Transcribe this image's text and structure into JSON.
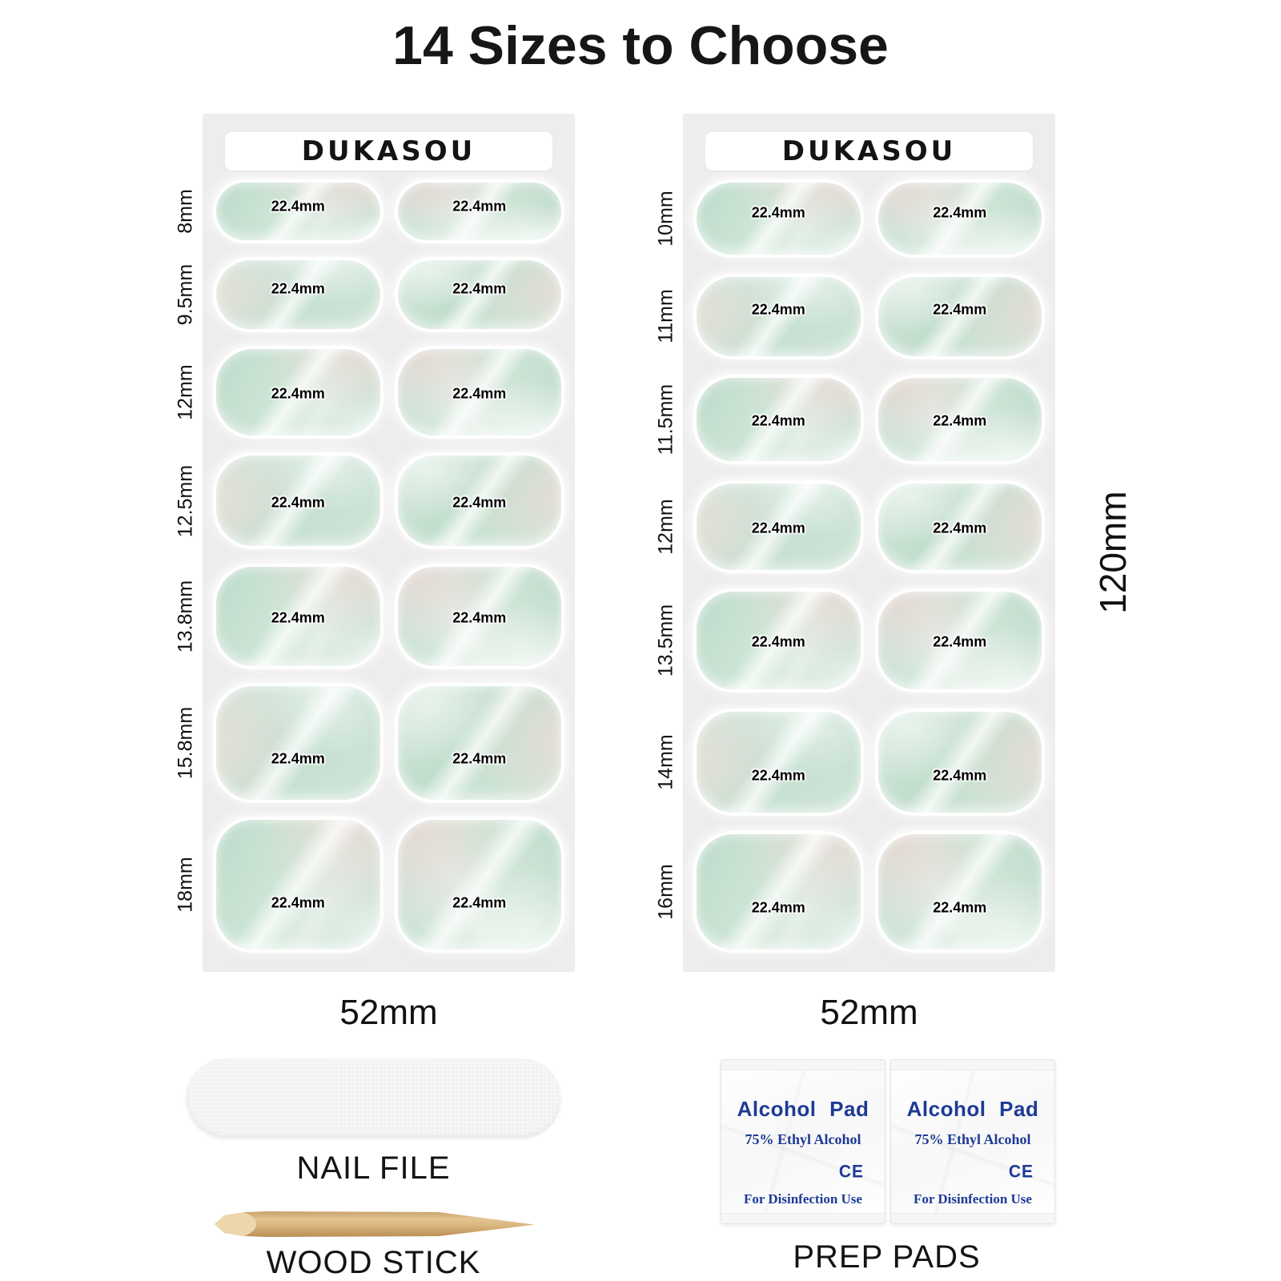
{
  "page": {
    "title": "14 Sizes to Choose"
  },
  "sheets": [
    {
      "side": "left",
      "brand": "DUKASOU",
      "bottom_width_label": "52mm",
      "nail_width_label": "22.4mm",
      "rows": [
        {
          "size": "8mm"
        },
        {
          "size": "9.5mm"
        },
        {
          "size": "12mm"
        },
        {
          "size": "12.5mm"
        },
        {
          "size": "13.8mm"
        },
        {
          "size": "15.8mm"
        },
        {
          "size": "18mm"
        }
      ]
    },
    {
      "side": "right",
      "brand": "DUKASOU",
      "bottom_width_label": "52mm",
      "nail_width_label": "22.4mm",
      "rows": [
        {
          "size": "10mm"
        },
        {
          "size": "11mm"
        },
        {
          "size": "11.5mm"
        },
        {
          "size": "12mm"
        },
        {
          "size": "13.5mm"
        },
        {
          "size": "14mm"
        },
        {
          "size": "16mm"
        }
      ]
    }
  ],
  "sheet_height_label": "120mm",
  "accessories": {
    "nail_file": {
      "label": "NAIL FILE"
    },
    "wood_stick": {
      "label": "WOOD STICK"
    },
    "prep_pads": {
      "label": "PREP PADS",
      "pads": [
        {
          "title": "Alcohol Pad",
          "subtitle": "75% Ethyl Alcohol",
          "ce_mark": "CE",
          "footer": "For Disinfection Use"
        },
        {
          "title": "Alcohol Pad",
          "subtitle": "75% Ethyl Alcohol",
          "ce_mark": "CE",
          "footer": "For Disinfection Use"
        }
      ]
    }
  },
  "colors": {
    "page_background": "#ffffff",
    "sheet_background": "#ededee",
    "nail_mint": "#c3ddcf",
    "nail_beige": "#e2d9d3",
    "text": "#111111",
    "alcohol_pad_text": "#1d3a96",
    "wood": "#d2ab72"
  }
}
